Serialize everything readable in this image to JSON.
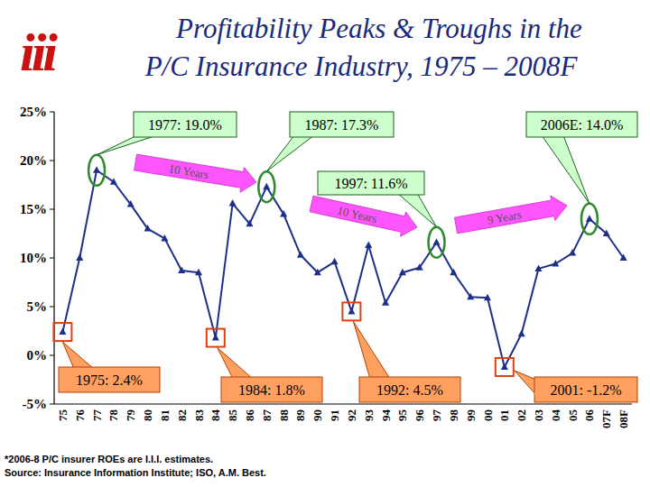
{
  "chart_data": {
    "type": "line",
    "logo": "iii",
    "title": [
      "Profitability Peaks & Troughs in the",
      "P/C Insurance Industry, 1975 – 2008F"
    ],
    "categories": [
      "75",
      "76",
      "77",
      "78",
      "79",
      "80",
      "81",
      "82",
      "83",
      "84",
      "85",
      "86",
      "87",
      "88",
      "89",
      "90",
      "91",
      "92",
      "93",
      "94",
      "95",
      "96",
      "97",
      "98",
      "99",
      "00",
      "01",
      "02",
      "03",
      "04",
      "05",
      "06",
      "07F",
      "08F"
    ],
    "values": [
      2.4,
      10.0,
      19.0,
      17.8,
      15.5,
      13.0,
      12.0,
      8.7,
      8.5,
      1.8,
      15.6,
      13.5,
      17.3,
      14.5,
      10.3,
      8.5,
      9.6,
      4.5,
      11.3,
      5.4,
      8.5,
      9.0,
      11.6,
      8.5,
      6.0,
      5.9,
      -1.2,
      2.2,
      8.9,
      9.4,
      10.5,
      14.0,
      12.5,
      10.0
    ],
    "color": "#1c2f8a",
    "marker": "triangle",
    "ylim": [
      -5,
      25
    ],
    "yticks": [
      {
        "value": -5,
        "label": "-5%"
      },
      {
        "value": 0,
        "label": "0%"
      },
      {
        "value": 5,
        "label": "5%"
      },
      {
        "value": 10,
        "label": "10%"
      },
      {
        "value": 15,
        "label": "15%"
      },
      {
        "value": 20,
        "label": "20%"
      },
      {
        "value": 25,
        "label": "25%"
      }
    ],
    "grid": false,
    "annotations": {
      "peaks": [
        "1977: 19.0%",
        "1987: 17.3%",
        "1997: 11.6%",
        "2006E: 14.0%"
      ],
      "troughs": [
        "1975: 2.4%",
        "1984: 1.8%",
        "1992: 4.5%",
        "2001: -1.2%"
      ],
      "spans": [
        "10 Years",
        "10 Years",
        "9 Years"
      ]
    },
    "footnotes": [
      "*2006-8 P/C insurer ROEs are I.I.I. estimates.",
      "Source: Insurance Information Institute; ISO, A.M. Best."
    ]
  }
}
